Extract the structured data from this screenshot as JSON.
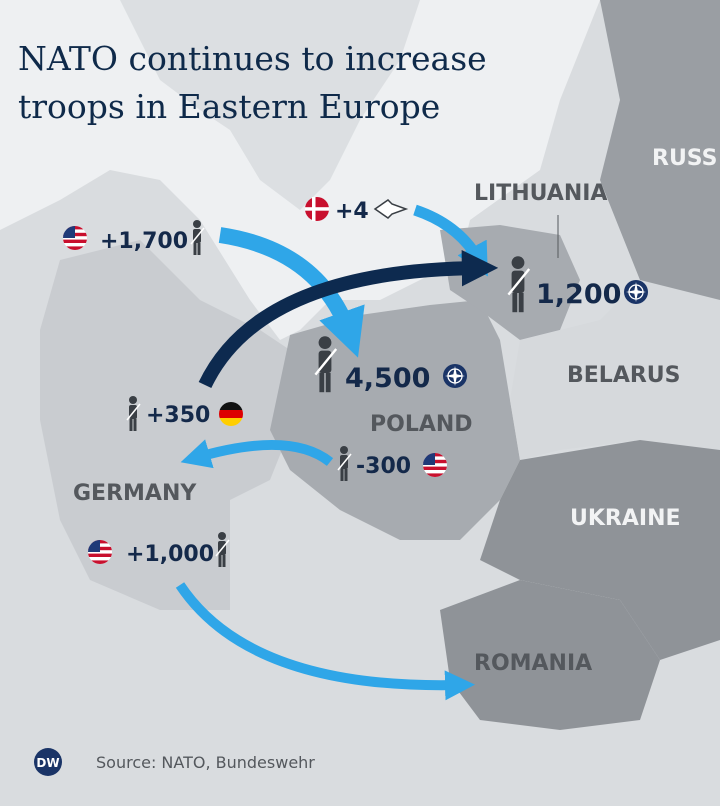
{
  "title": [
    "NATO continues to increase",
    "troops in Eastern Europe"
  ],
  "countries": [
    "RUSS",
    "LITHUANIA",
    "BELARUS",
    "POLAND",
    "GERMANY",
    "UKRAINE",
    "ROMANIA"
  ],
  "deployments": [
    "+1,700",
    "+4",
    "1,200",
    "4,500",
    "+350",
    "-300",
    "+1,000"
  ],
  "source": "Source: NATO, Bundeswehr",
  "logo": "DW"
}
